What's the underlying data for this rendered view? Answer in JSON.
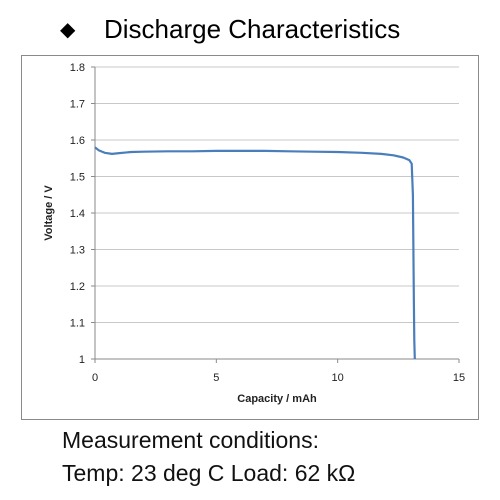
{
  "header": {
    "bullet_symbol": "◆",
    "title": "Discharge Characteristics"
  },
  "notes": {
    "line1": "Measurement conditions:",
    "line2": "Temp: 23 deg C   Load: 62 kΩ"
  },
  "chart_data": {
    "type": "line",
    "title": "",
    "xlabel": "Capacity  /  mAh",
    "ylabel": "Voltage  /  V",
    "xlim": [
      0,
      15
    ],
    "ylim": [
      1.0,
      1.8
    ],
    "xticks": [
      0,
      5,
      10,
      15
    ],
    "yticks": [
      1.0,
      1.1,
      1.2,
      1.3,
      1.4,
      1.5,
      1.6,
      1.7,
      1.8
    ],
    "xtick_labels": [
      "0",
      "5",
      "10",
      "15"
    ],
    "ytick_labels": [
      "1",
      "1.1",
      "1.2",
      "1.3",
      "1.4",
      "1.5",
      "1.6",
      "1.7",
      "1.8"
    ],
    "grid": "horizontal",
    "line_color": "#4a7ebb",
    "series": [
      {
        "x": [
          0,
          0.15,
          0.4,
          0.7,
          1.0,
          1.5,
          2.0,
          3.0,
          4.0,
          5.0,
          6.0,
          7.0,
          8.0,
          9.0,
          10.0,
          11.0,
          11.8,
          12.3,
          12.7,
          12.95,
          13.05,
          13.1,
          13.12,
          13.14,
          13.16,
          13.18
        ],
        "y": [
          1.58,
          1.572,
          1.565,
          1.562,
          1.564,
          1.567,
          1.568,
          1.569,
          1.569,
          1.57,
          1.57,
          1.57,
          1.569,
          1.568,
          1.567,
          1.565,
          1.562,
          1.558,
          1.552,
          1.545,
          1.535,
          1.45,
          1.3,
          1.15,
          1.05,
          1.0
        ]
      }
    ]
  }
}
